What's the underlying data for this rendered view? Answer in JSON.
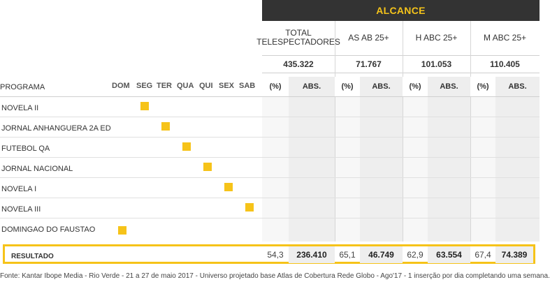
{
  "header": {
    "title": "ALCANCE"
  },
  "columns": [
    {
      "label": "TOTAL TELESPECTADORES",
      "total": "435.322"
    },
    {
      "label": "AS AB 25+",
      "total": "71.767"
    },
    {
      "label": "H ABC 25+",
      "total": "101.053"
    },
    {
      "label": "M ABC 25+",
      "total": "110.405"
    }
  ],
  "program_header": "PROGRAMA",
  "days": [
    "DOM",
    "SEG",
    "TER",
    "QUA",
    "QUI",
    "SEX",
    "SAB"
  ],
  "sub_headers": {
    "pct": "(%)",
    "abs": "ABS."
  },
  "programs": [
    {
      "name": "NOVELA II",
      "day_index": 1
    },
    {
      "name": "JORNAL ANHANGUERA 2A ED",
      "day_index": 2
    },
    {
      "name": "FUTEBOL QA",
      "day_index": 3
    },
    {
      "name": "JORNAL NACIONAL",
      "day_index": 4
    },
    {
      "name": "NOVELA I",
      "day_index": 5
    },
    {
      "name": "NOVELA III",
      "day_index": 6
    },
    {
      "name": "DOMINGAO DO FAUSTAO",
      "day_index": 0
    }
  ],
  "result": {
    "label": "RESULTADO",
    "values": [
      {
        "pct": "54,3",
        "abs": "236.410"
      },
      {
        "pct": "65,1",
        "abs": "46.749"
      },
      {
        "pct": "62,9",
        "abs": "63.554"
      },
      {
        "pct": "67,4",
        "abs": "74.389"
      }
    ]
  },
  "footnote": "Fonte: Kantar Ibope Media - Rio Verde -  21 a 27 de maio 2017 - Universo projetado base Atlas de Cobertura Rede Globo - Ago'17 - 1 inserção por dia completando uma semana.",
  "colors": {
    "accent": "#f6c319",
    "header_bg": "#333333",
    "header_text": "#f4c31a"
  }
}
